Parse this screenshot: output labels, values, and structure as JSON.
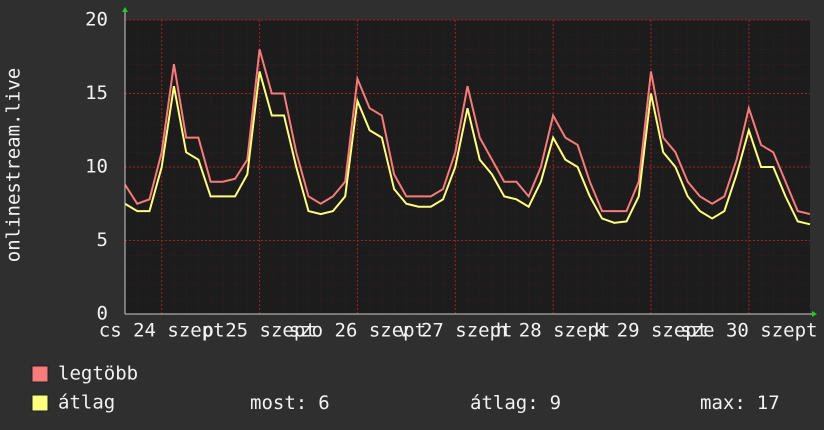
{
  "chart_data": {
    "type": "line",
    "ylabel": "onlinestream.live",
    "x": [
      0,
      3,
      6,
      9,
      12,
      15,
      18,
      21,
      24,
      27,
      30,
      33,
      36,
      39,
      42,
      45,
      48,
      51,
      54,
      57,
      60,
      63,
      66,
      69,
      72,
      75,
      78,
      81,
      84,
      87,
      90,
      93,
      96,
      99,
      102,
      105,
      108,
      111,
      114,
      117,
      120,
      123,
      126,
      129,
      132,
      135,
      138,
      141,
      144,
      147,
      150,
      153,
      156,
      159,
      162,
      165,
      168
    ],
    "xlim": [
      0,
      168
    ],
    "xticks": [
      {
        "value": 9,
        "label": "cs 24 szept"
      },
      {
        "value": 33,
        "label": "p 25 szept"
      },
      {
        "value": 57,
        "label": "szo 26 szept"
      },
      {
        "value": 81,
        "label": "v 27 szept"
      },
      {
        "value": 105,
        "label": "h 28 szept"
      },
      {
        "value": 129,
        "label": "k 29 szept"
      },
      {
        "value": 153,
        "label": "sze 30 szept"
      }
    ],
    "ylim": [
      0,
      20
    ],
    "yticks": [
      0,
      5,
      10,
      15,
      20
    ],
    "grid": true,
    "series": [
      {
        "name": "legtöbb",
        "color": "#f77b7b",
        "values": [
          8.8,
          7.5,
          7.8,
          11,
          17,
          12,
          12,
          9,
          9,
          9.2,
          10.5,
          18,
          15,
          15,
          11,
          8,
          7.5,
          8,
          9,
          16,
          14,
          13.5,
          9.5,
          8,
          8,
          8,
          8.5,
          11,
          15.5,
          12,
          10.5,
          9,
          9,
          8,
          10,
          13.5,
          12,
          11.5,
          9,
          7,
          7,
          7,
          9,
          16.5,
          12,
          11,
          9,
          8,
          7.5,
          8,
          10.5,
          14,
          11.5,
          11,
          9,
          7,
          6.8
        ]
      },
      {
        "name": "átlag",
        "color": "#ffff80",
        "values": [
          7.5,
          7,
          7,
          10,
          15.5,
          11,
          10.5,
          8,
          8,
          8,
          9.5,
          16.5,
          13.5,
          13.5,
          10,
          7,
          6.8,
          7,
          8,
          14.5,
          12.5,
          12,
          8.5,
          7.5,
          7.3,
          7.3,
          7.8,
          10,
          14,
          10.5,
          9.5,
          8,
          7.8,
          7.3,
          9,
          12,
          10.5,
          10,
          8,
          6.5,
          6.2,
          6.3,
          8,
          15,
          11,
          10,
          8,
          7,
          6.5,
          7,
          9.5,
          12.5,
          10,
          10,
          8,
          6.3,
          6.1
        ]
      }
    ],
    "stats": [
      {
        "label": "most:",
        "value": 6
      },
      {
        "label": "átlag:",
        "value": 9
      },
      {
        "label": "max:",
        "value": 17
      }
    ]
  }
}
